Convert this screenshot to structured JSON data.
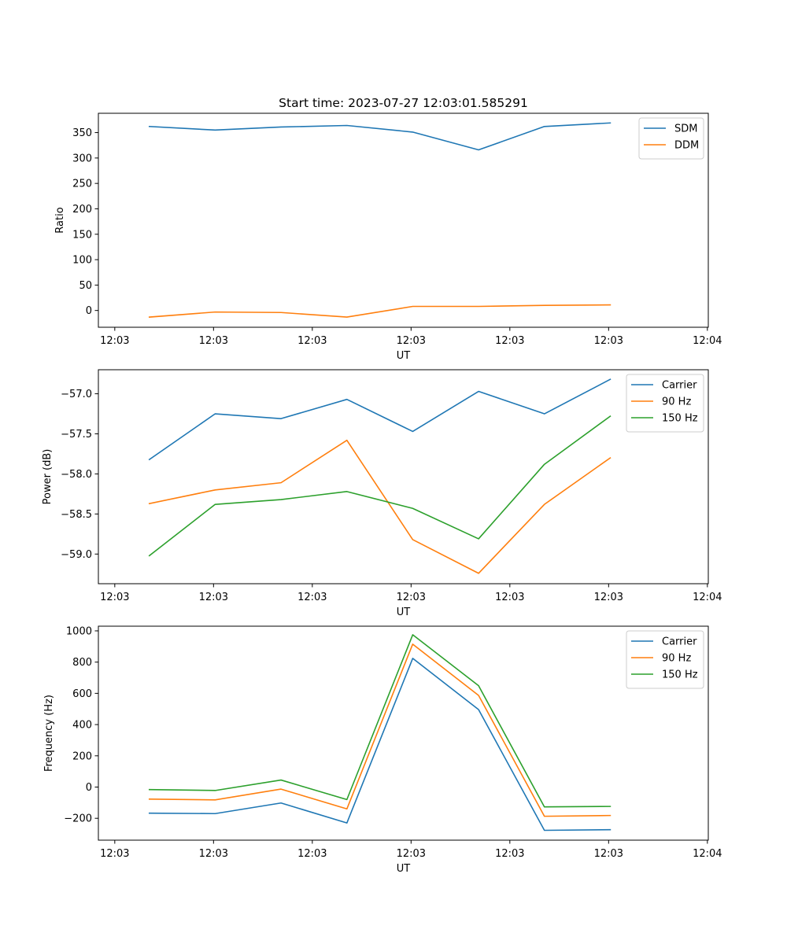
{
  "figure_title": "Start time: 2023-07-27 12:03:01.585291",
  "chart_data": [
    {
      "type": "line",
      "title": "Start time: 2023-07-27 12:03:01.585291",
      "xlabel": "UT",
      "ylabel": "Ratio",
      "x": [
        1,
        2,
        3,
        4,
        5,
        6,
        7,
        8
      ],
      "xlim": [
        0.226,
        9.489
      ],
      "xticks": [
        0.475,
        1.975,
        3.475,
        4.975,
        6.475,
        7.975,
        9.475
      ],
      "xticklabels": [
        "12:03",
        "12:03",
        "12:03",
        "12:03",
        "12:03",
        "12:03",
        "12:04"
      ],
      "ylim": [
        -33,
        388
      ],
      "yticks": [
        0,
        50,
        100,
        150,
        200,
        250,
        300,
        350
      ],
      "yticklabels": [
        "0",
        "50",
        "100",
        "150",
        "200",
        "250",
        "300",
        "350"
      ],
      "legend_position": "top-right",
      "series": [
        {
          "name": "SDM",
          "color": "#1f77b4",
          "values": [
            362,
            355,
            361,
            364,
            351,
            316,
            362,
            369
          ]
        },
        {
          "name": "DDM",
          "color": "#ff7f0e",
          "values": [
            -13,
            -3,
            -4,
            -13,
            8,
            8,
            10,
            11
          ]
        }
      ]
    },
    {
      "type": "line",
      "title": "",
      "xlabel": "UT",
      "ylabel": "Power (dB)",
      "x": [
        1,
        2,
        3,
        4,
        5,
        6,
        7,
        8
      ],
      "xlim": [
        0.226,
        9.489
      ],
      "xticks": [
        0.475,
        1.975,
        3.475,
        4.975,
        6.475,
        7.975,
        9.475
      ],
      "xticklabels": [
        "12:03",
        "12:03",
        "12:03",
        "12:03",
        "12:03",
        "12:03",
        "12:04"
      ],
      "ylim": [
        -59.37,
        -56.7
      ],
      "yticks": [
        -59.0,
        -58.5,
        -58.0,
        -57.5,
        -57.0
      ],
      "yticklabels": [
        "−59.0",
        "−58.5",
        "−58.0",
        "−57.5",
        "−57.0"
      ],
      "legend_position": "top-right",
      "series": [
        {
          "name": "Carrier",
          "color": "#1f77b4",
          "values": [
            -57.82,
            -57.25,
            -57.31,
            -57.07,
            -57.47,
            -56.97,
            -57.25,
            -56.82
          ]
        },
        {
          "name": "90 Hz",
          "color": "#ff7f0e",
          "values": [
            -58.37,
            -58.2,
            -58.11,
            -57.58,
            -58.82,
            -59.24,
            -58.38,
            -57.8
          ]
        },
        {
          "name": "150 Hz",
          "color": "#2ca02c",
          "values": [
            -59.02,
            -58.38,
            -58.32,
            -58.22,
            -58.43,
            -58.81,
            -57.88,
            -57.28
          ]
        }
      ]
    },
    {
      "type": "line",
      "title": "",
      "xlabel": "UT",
      "ylabel": "Frequency (Hz)",
      "x": [
        1,
        2,
        3,
        4,
        5,
        6,
        7,
        8
      ],
      "xlim": [
        0.226,
        9.489
      ],
      "xticks": [
        0.475,
        1.975,
        3.475,
        4.975,
        6.475,
        7.975,
        9.475
      ],
      "xticklabels": [
        "12:03",
        "12:03",
        "12:03",
        "12:03",
        "12:03",
        "12:03",
        "12:04"
      ],
      "ylim": [
        -340,
        1030
      ],
      "yticks": [
        -200,
        0,
        200,
        400,
        600,
        800,
        1000
      ],
      "yticklabels": [
        "−200",
        "0",
        "200",
        "400",
        "600",
        "800",
        "1000"
      ],
      "legend_position": "top-right",
      "series": [
        {
          "name": "Carrier",
          "color": "#1f77b4",
          "values": [
            -167,
            -170,
            -102,
            -230,
            824,
            496,
            -277,
            -273
          ]
        },
        {
          "name": "90 Hz",
          "color": "#ff7f0e",
          "values": [
            -77,
            -82,
            -13,
            -140,
            915,
            587,
            -187,
            -182
          ]
        },
        {
          "name": "150 Hz",
          "color": "#2ca02c",
          "values": [
            -16,
            -22,
            45,
            -80,
            975,
            649,
            -127,
            -124
          ]
        }
      ]
    }
  ]
}
